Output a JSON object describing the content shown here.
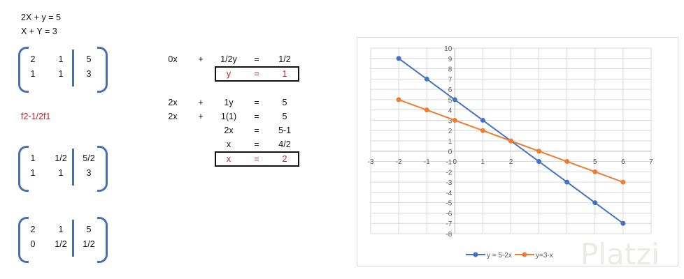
{
  "equations": {
    "line1": "2X + y = 5",
    "line2": "X + Y = 3"
  },
  "operation": "f2-1/2f1",
  "matrices": [
    {
      "rows": [
        [
          "2",
          "1",
          "5"
        ],
        [
          "1",
          "1",
          "3"
        ]
      ]
    },
    {
      "rows": [
        [
          "1",
          "1/2",
          "5/2"
        ],
        [
          "1",
          "1",
          "3"
        ]
      ]
    },
    {
      "rows": [
        [
          "2",
          "1",
          "5"
        ],
        [
          "0",
          "1/2",
          "1/2"
        ]
      ]
    }
  ],
  "solution_rows": [
    {
      "a": "0x",
      "op": "+",
      "b": "1/2y",
      "eq": "=",
      "c": "1/2",
      "boxed": false
    },
    {
      "a": "",
      "op": "",
      "b": "y",
      "eq": "=",
      "c": "1",
      "boxed": true
    },
    {
      "a": "2x",
      "op": "+",
      "b": "1y",
      "eq": "=",
      "c": "5",
      "boxed": false
    },
    {
      "a": "2x",
      "op": "+",
      "b": "1(1)",
      "eq": "=",
      "c": "5",
      "boxed": false
    },
    {
      "a": "",
      "op": "",
      "b": "2x",
      "eq": "=",
      "c": "5-1",
      "boxed": false
    },
    {
      "a": "",
      "op": "",
      "b": "x",
      "eq": "=",
      "c": "4/2",
      "boxed": false
    },
    {
      "a": "",
      "op": "",
      "b": "x",
      "eq": "=",
      "c": "2",
      "boxed": true
    }
  ],
  "colors": {
    "bracket": "#4a6fb0",
    "highlight": "#c0242c",
    "series1": "#4472c4",
    "series2": "#ed7d31"
  },
  "watermark": "Platzi",
  "chart_data": {
    "type": "line",
    "xlim": [
      -3,
      7
    ],
    "ylim": [
      -8,
      10
    ],
    "x_ticks": [
      "-3",
      "-2",
      "-1",
      "0",
      "1",
      "2",
      "3",
      "4",
      "5",
      "6",
      "7"
    ],
    "y_ticks": [
      "10",
      "9",
      "8",
      "7",
      "6",
      "5",
      "4",
      "3",
      "2",
      "1",
      "0",
      "-1",
      "-2",
      "-3",
      "-4",
      "-5",
      "-6",
      "-7",
      "-8"
    ],
    "grid": true,
    "legend": "bottom",
    "series": [
      {
        "name": "y = 5-2x",
        "x": [
          -2,
          -1,
          0,
          1,
          2,
          3,
          4,
          5,
          6
        ],
        "y": [
          9,
          7,
          5,
          3,
          1,
          -1,
          -3,
          -5,
          -7
        ]
      },
      {
        "name": "y=3-x",
        "x": [
          -2,
          -1,
          0,
          1,
          2,
          3,
          4,
          5,
          6
        ],
        "y": [
          5,
          4,
          3,
          2,
          1,
          0,
          -1,
          -2,
          -3
        ]
      }
    ]
  }
}
